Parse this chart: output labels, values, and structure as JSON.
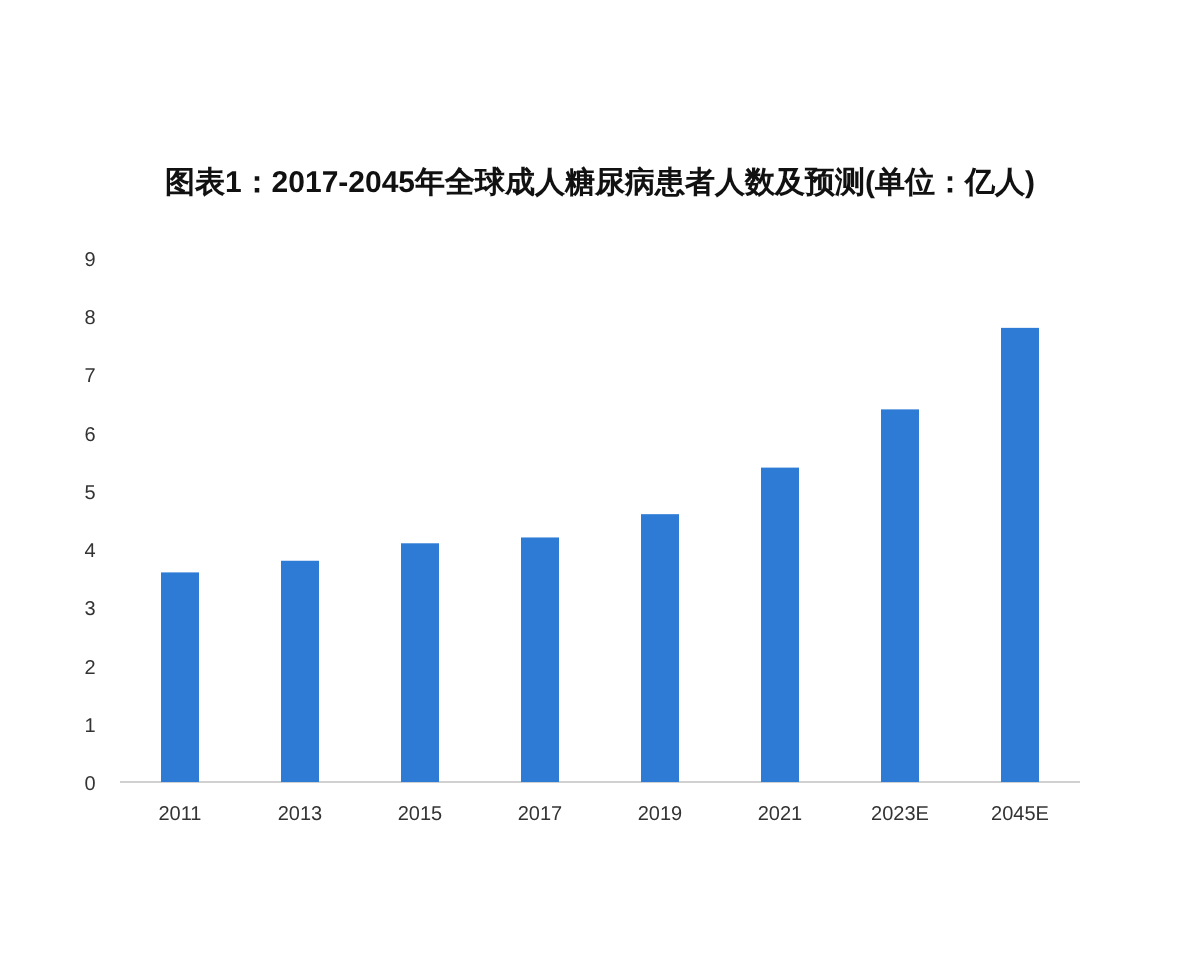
{
  "chart_data": {
    "type": "bar",
    "title": "图表1：2017-2045年全球成人糖尿病患者人数及预测(单位：亿人)",
    "categories": [
      "2011",
      "2013",
      "2015",
      "2017",
      "2019",
      "2021",
      "2023E",
      "2045E"
    ],
    "values": [
      3.6,
      3.8,
      4.1,
      4.2,
      4.6,
      5.4,
      6.4,
      7.8
    ],
    "color": "#2e7bd6",
    "ylim": [
      0,
      9
    ],
    "yticks": [
      0,
      1,
      2,
      3,
      4,
      5,
      6,
      7,
      8,
      9
    ],
    "grid": false
  }
}
